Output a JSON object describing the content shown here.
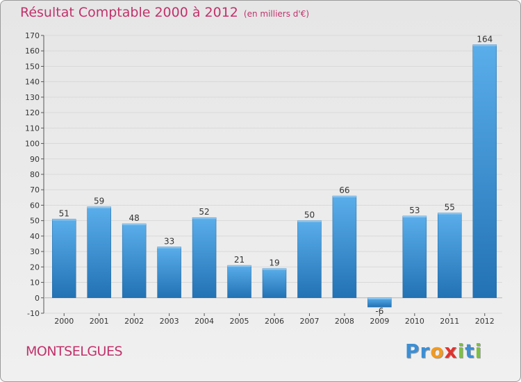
{
  "chart_data": {
    "type": "bar",
    "title": "Résultat Comptable 2000 à 2012",
    "subtitle": "(en milliers d'€)",
    "categories": [
      "2000",
      "2001",
      "2002",
      "2003",
      "2004",
      "2005",
      "2006",
      "2007",
      "2008",
      "2009",
      "2010",
      "2011",
      "2012"
    ],
    "values": [
      51,
      59,
      48,
      33,
      52,
      21,
      19,
      50,
      66,
      -6,
      53,
      55,
      164
    ],
    "ylim": [
      -10,
      170
    ],
    "ytick_step": 10,
    "grid": true,
    "xlabel": "",
    "ylabel": ""
  },
  "footer": {
    "town": "MONTSELGUES",
    "logo_letters": [
      {
        "ch": "P",
        "color": "#3a8fd6"
      },
      {
        "ch": "r",
        "color": "#3a8fd6"
      },
      {
        "ch": "o",
        "color": "#f39a1e"
      },
      {
        "ch": "x",
        "color": "#e2322d"
      },
      {
        "ch": "i",
        "color": "#7cc142"
      },
      {
        "ch": "t",
        "color": "#3a8fd6"
      },
      {
        "ch": "i",
        "color": "#7cc142"
      }
    ]
  },
  "colors": {
    "title": "#c2316b",
    "bar_top": "#5aaeea",
    "bar_bottom": "#2272b4",
    "grid": "#d9d9d9"
  }
}
